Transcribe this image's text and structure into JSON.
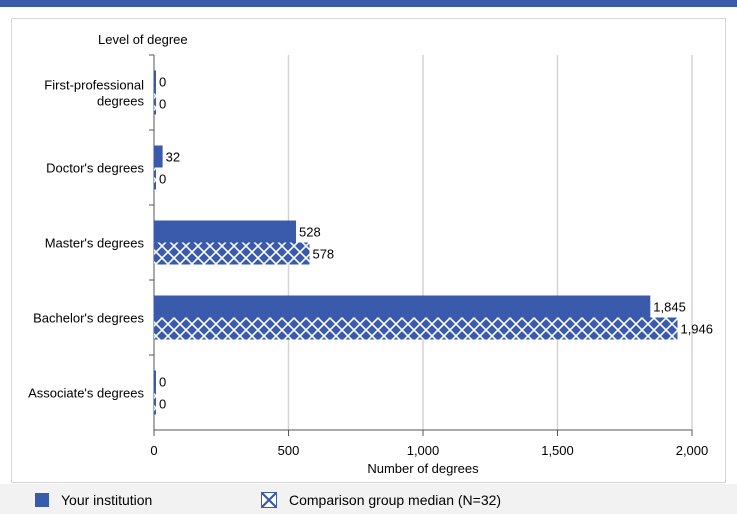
{
  "chart_data": {
    "type": "bar",
    "orientation": "horizontal",
    "title": "",
    "ylabel": "Level of degree",
    "xlabel": "Number of degrees",
    "categories": [
      "First-professional degrees",
      "Doctor's degrees",
      "Master's degrees",
      "Bachelor's degrees",
      "Associate's degrees"
    ],
    "series": [
      {
        "name": "Your institution",
        "values": [
          0,
          32,
          528,
          1845,
          0
        ],
        "labels": [
          "0",
          "32",
          "528",
          "1,845",
          "0"
        ],
        "pattern": "solid",
        "color": "#3a5bab"
      },
      {
        "name": "Comparison group median (N=32)",
        "values": [
          0,
          0,
          578,
          1946,
          0
        ],
        "labels": [
          "0",
          "0",
          "578",
          "1,946",
          "0"
        ],
        "pattern": "crosshatch",
        "color": "#3a5bab"
      }
    ],
    "xlim": [
      0,
      2000
    ],
    "xticks": [
      0,
      500,
      1000,
      1500,
      2000
    ],
    "xtick_labels": [
      "0",
      "500",
      "1,000",
      "1,500",
      "2,000"
    ],
    "grid": "vertical",
    "legend_position": "bottom"
  },
  "legend": {
    "item1": "Your institution",
    "item2": "Comparison group median (N=32)"
  }
}
